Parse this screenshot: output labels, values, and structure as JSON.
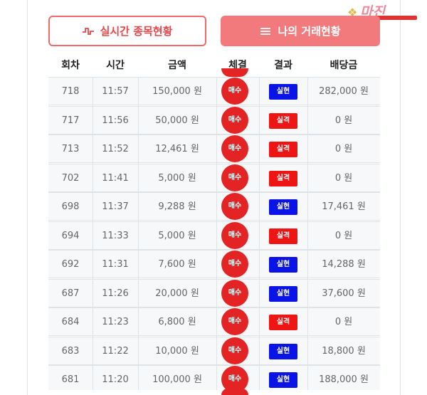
{
  "tabs": {
    "live_label": "실시간 종목현황",
    "mine_label": "나의 거래현황"
  },
  "watermark": {
    "text": "마진"
  },
  "table": {
    "headers": [
      "회차",
      "시간",
      "금액",
      "체결",
      "결과",
      "배당금"
    ],
    "rows": [
      {
        "round": "718",
        "time": "11:57",
        "amount": "150,000 원",
        "execution": "매수",
        "result": "실현",
        "status": "win",
        "payout": "282,000 원"
      },
      {
        "round": "717",
        "time": "11:56",
        "amount": "50,000 원",
        "execution": "매수",
        "result": "실격",
        "status": "lose",
        "payout": "0 원"
      },
      {
        "round": "713",
        "time": "11:52",
        "amount": "12,461 원",
        "execution": "매수",
        "result": "실격",
        "status": "lose",
        "payout": "0 원"
      },
      {
        "round": "702",
        "time": "11:41",
        "amount": "5,000 원",
        "execution": "매수",
        "result": "실격",
        "status": "lose",
        "payout": "0 원"
      },
      {
        "round": "698",
        "time": "11:37",
        "amount": "9,288 원",
        "execution": "매수",
        "result": "실현",
        "status": "win",
        "payout": "17,461 원"
      },
      {
        "round": "694",
        "time": "11:33",
        "amount": "5,000 원",
        "execution": "매수",
        "result": "실격",
        "status": "lose",
        "payout": "0 원"
      },
      {
        "round": "692",
        "time": "11:31",
        "amount": "7,600 원",
        "execution": "매수",
        "result": "실현",
        "status": "win",
        "payout": "14,288 원"
      },
      {
        "round": "687",
        "time": "11:26",
        "amount": "20,000 원",
        "execution": "매수",
        "result": "실현",
        "status": "win",
        "payout": "37,600 원"
      },
      {
        "round": "684",
        "time": "11:23",
        "amount": "6,800 원",
        "execution": "매수",
        "result": "실격",
        "status": "lose",
        "payout": "0 원"
      },
      {
        "round": "683",
        "time": "11:22",
        "amount": "10,000 원",
        "execution": "매수",
        "result": "실현",
        "status": "win",
        "payout": "18,800 원"
      },
      {
        "round": "681",
        "time": "11:20",
        "amount": "100,000 원",
        "execution": "매수",
        "result": "실현",
        "status": "win",
        "payout": "188,000 원"
      }
    ]
  },
  "colors": {
    "accent": "#f27a7c",
    "buy": "#e42424",
    "win": "#0a14e6",
    "lose": "#f01515"
  }
}
